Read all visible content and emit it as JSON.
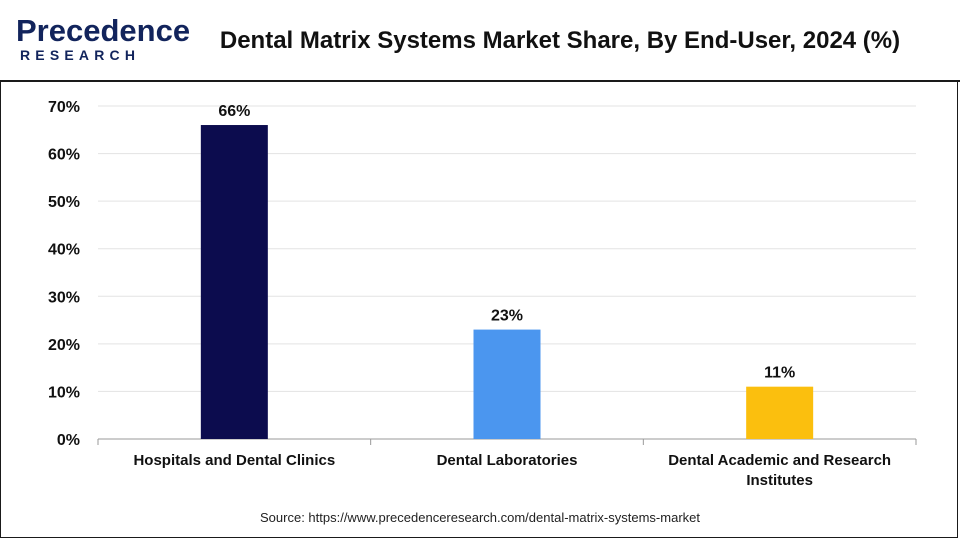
{
  "brand": {
    "name_top": "Precedence",
    "name_bottom": "RESEARCH",
    "color": "#12245c"
  },
  "chart_data": {
    "type": "bar",
    "title": "Dental Matrix Systems Market Share, By End-User, 2024 (%)",
    "categories": [
      "Hospitals and Dental Clinics",
      "Dental Laboratories",
      "Dental Academic and Research Institutes"
    ],
    "values": [
      66,
      23,
      11
    ],
    "data_labels": [
      "66%",
      "23%",
      "11%"
    ],
    "colors": [
      "#0c0c4e",
      "#4b96ef",
      "#fbbf0e"
    ],
    "ylim": [
      0,
      70
    ],
    "yticks": [
      0,
      10,
      20,
      30,
      40,
      50,
      60,
      70
    ],
    "ytick_labels": [
      "0%",
      "10%",
      "20%",
      "30%",
      "40%",
      "50%",
      "60%",
      "70%"
    ],
    "grid": true,
    "xlabel": "",
    "ylabel": ""
  },
  "source": "Source: https://www.precedenceresearch.com/dental-matrix-systems-market"
}
